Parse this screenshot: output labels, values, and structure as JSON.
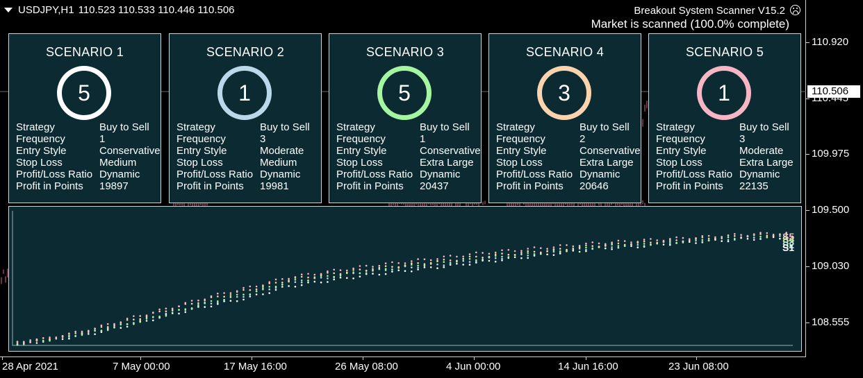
{
  "symbol_bar": {
    "dropdown_icon": "triangle-down-icon",
    "symbol": "USDJPY,H1",
    "ohlc": "110.523 110.533 110.446 110.506"
  },
  "scanner": {
    "title": "Breakout System Scanner V15.2",
    "status": "Market is scanned (100.0% complete)",
    "status_icon": "frown-face-icon"
  },
  "row_labels": [
    "Strategy",
    "Frequency",
    "Entry Style",
    "Stop Loss",
    "Profit/Loss Ratio",
    "Profit in Points"
  ],
  "scenarios": [
    {
      "title": "SCENARIO 1",
      "rank": "5",
      "color": "#ffffff",
      "strategy": "Buy to Sell",
      "frequency": "1",
      "entry_style": "Conservative",
      "stop_loss": "Medium",
      "pl_ratio": "Dynamic",
      "profit_points": "19897"
    },
    {
      "title": "SCENARIO 2",
      "rank": "1",
      "color": "#b9d9ea",
      "strategy": "Buy to Sell",
      "frequency": "3",
      "entry_style": "Moderate",
      "stop_loss": "Medium",
      "pl_ratio": "Dynamic",
      "profit_points": "19981"
    },
    {
      "title": "SCENARIO 3",
      "rank": "5",
      "color": "#a6f5a0",
      "strategy": "Buy to Sell",
      "frequency": "1",
      "entry_style": "Conservative",
      "stop_loss": "Extra Large",
      "pl_ratio": "Dynamic",
      "profit_points": "20437"
    },
    {
      "title": "SCENARIO 4",
      "rank": "3",
      "color": "#fbd4ae",
      "strategy": "Buy to Sell",
      "frequency": "2",
      "entry_style": "Conservative",
      "stop_loss": "Extra Large",
      "pl_ratio": "Dynamic",
      "profit_points": "20646"
    },
    {
      "title": "SCENARIO 5",
      "rank": "1",
      "color": "#f8b6c4",
      "strategy": "Buy to Sell",
      "frequency": "3",
      "entry_style": "Moderate",
      "stop_loss": "Extra Large",
      "pl_ratio": "Dynamic",
      "profit_points": "22135"
    }
  ],
  "price_axis": {
    "labels": [
      "110.920",
      "110.445",
      "109.975",
      "109.500",
      "109.030",
      "108.555"
    ],
    "current": "110.506"
  },
  "time_axis": {
    "labels": [
      "28 Apr 2021",
      "7 May 00:00",
      "17 May 16:00",
      "26 May 08:00",
      "4 Jun 00:00",
      "14 Jun 16:00",
      "23 Jun 08:00"
    ]
  },
  "equity_chart": {
    "end_labels": [
      "S5",
      "S4",
      "S3",
      "S2",
      "S1"
    ],
    "chart_data": {
      "type": "scatter",
      "series": [
        {
          "name": "S1",
          "color": "#ffffff",
          "points": [
            [
              0,
              0.0
            ],
            [
              5,
              0.04
            ],
            [
              10,
              0.1
            ],
            [
              15,
              0.18
            ],
            [
              20,
              0.27
            ],
            [
              25,
              0.35
            ],
            [
              30,
              0.42
            ],
            [
              35,
              0.52
            ],
            [
              40,
              0.57
            ],
            [
              45,
              0.62
            ],
            [
              50,
              0.66
            ],
            [
              55,
              0.7
            ],
            [
              60,
              0.74
            ],
            [
              65,
              0.78
            ],
            [
              70,
              0.82
            ],
            [
              75,
              0.86
            ],
            [
              80,
              0.88
            ],
            [
              85,
              0.91
            ],
            [
              90,
              0.93
            ],
            [
              95,
              0.95
            ],
            [
              100,
              0.96
            ]
          ]
        },
        {
          "name": "S2",
          "color": "#b9d9ea",
          "points": [
            [
              0,
              0.01
            ],
            [
              5,
              0.05
            ],
            [
              10,
              0.12
            ],
            [
              15,
              0.2
            ],
            [
              20,
              0.29
            ],
            [
              25,
              0.37
            ],
            [
              30,
              0.45
            ],
            [
              35,
              0.55
            ],
            [
              40,
              0.6
            ],
            [
              45,
              0.66
            ],
            [
              50,
              0.69
            ],
            [
              55,
              0.72
            ],
            [
              60,
              0.76
            ],
            [
              65,
              0.8
            ],
            [
              70,
              0.84
            ],
            [
              75,
              0.87
            ],
            [
              80,
              0.89
            ],
            [
              85,
              0.92
            ],
            [
              90,
              0.94
            ],
            [
              95,
              0.96
            ],
            [
              100,
              0.97
            ]
          ]
        },
        {
          "name": "S3",
          "color": "#a6f5a0",
          "points": [
            [
              0,
              0.0
            ],
            [
              5,
              0.05
            ],
            [
              10,
              0.11
            ],
            [
              15,
              0.19
            ],
            [
              20,
              0.28
            ],
            [
              25,
              0.38
            ],
            [
              30,
              0.46
            ],
            [
              35,
              0.56
            ],
            [
              40,
              0.61
            ],
            [
              45,
              0.65
            ],
            [
              50,
              0.7
            ],
            [
              55,
              0.74
            ],
            [
              60,
              0.77
            ],
            [
              65,
              0.81
            ],
            [
              70,
              0.84
            ],
            [
              75,
              0.88
            ],
            [
              80,
              0.9
            ],
            [
              85,
              0.92
            ],
            [
              90,
              0.95
            ],
            [
              95,
              0.97
            ],
            [
              100,
              0.98
            ]
          ]
        },
        {
          "name": "S4",
          "color": "#fbd4ae",
          "points": [
            [
              0,
              0.01
            ],
            [
              5,
              0.06
            ],
            [
              10,
              0.13
            ],
            [
              15,
              0.22
            ],
            [
              20,
              0.32
            ],
            [
              25,
              0.41
            ],
            [
              30,
              0.49
            ],
            [
              35,
              0.58
            ],
            [
              40,
              0.63
            ],
            [
              45,
              0.67
            ],
            [
              50,
              0.71
            ],
            [
              55,
              0.75
            ],
            [
              60,
              0.79
            ],
            [
              65,
              0.82
            ],
            [
              70,
              0.85
            ],
            [
              75,
              0.89
            ],
            [
              80,
              0.91
            ],
            [
              85,
              0.93
            ],
            [
              90,
              0.96
            ],
            [
              95,
              0.98
            ],
            [
              100,
              0.99
            ]
          ]
        },
        {
          "name": "S5",
          "color": "#f8b6c4",
          "points": [
            [
              0,
              0.01
            ],
            [
              5,
              0.06
            ],
            [
              10,
              0.14
            ],
            [
              15,
              0.24
            ],
            [
              20,
              0.33
            ],
            [
              25,
              0.43
            ],
            [
              30,
              0.51
            ],
            [
              35,
              0.6
            ],
            [
              40,
              0.65
            ],
            [
              45,
              0.7
            ],
            [
              50,
              0.74
            ],
            [
              55,
              0.78
            ],
            [
              60,
              0.82
            ],
            [
              65,
              0.85
            ],
            [
              70,
              0.88
            ],
            [
              75,
              0.91
            ],
            [
              80,
              0.93
            ],
            [
              85,
              0.95
            ],
            [
              90,
              0.97
            ],
            [
              95,
              0.99
            ],
            [
              100,
              1.0
            ]
          ]
        }
      ]
    }
  }
}
